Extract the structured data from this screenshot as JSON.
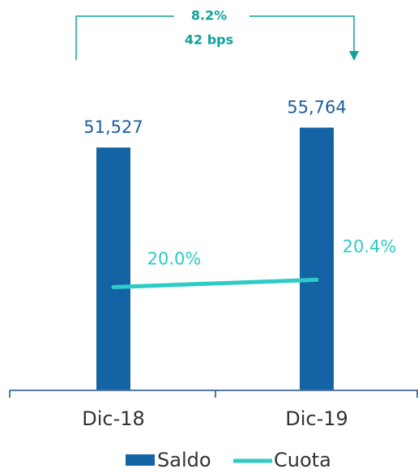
{
  "chart_data": {
    "type": "bar",
    "categories": [
      "Dic-18",
      "Dic-19"
    ],
    "series": [
      {
        "name": "Saldo",
        "type": "bar",
        "color": "#1464a5",
        "values": [
          51527,
          55764
        ],
        "value_labels": [
          "51,527",
          "55,764"
        ]
      },
      {
        "name": "Cuota",
        "type": "line",
        "axis": "y2",
        "color": "#2ecbc7",
        "values": [
          20.0,
          20.4
        ],
        "value_labels": [
          "20.0%",
          "20.4%"
        ]
      }
    ],
    "ylim": [
      0,
      60000
    ],
    "y2lim": [
      14.4,
      29.8
    ],
    "annotations": [
      "8.2%",
      "42 bps"
    ]
  }
}
